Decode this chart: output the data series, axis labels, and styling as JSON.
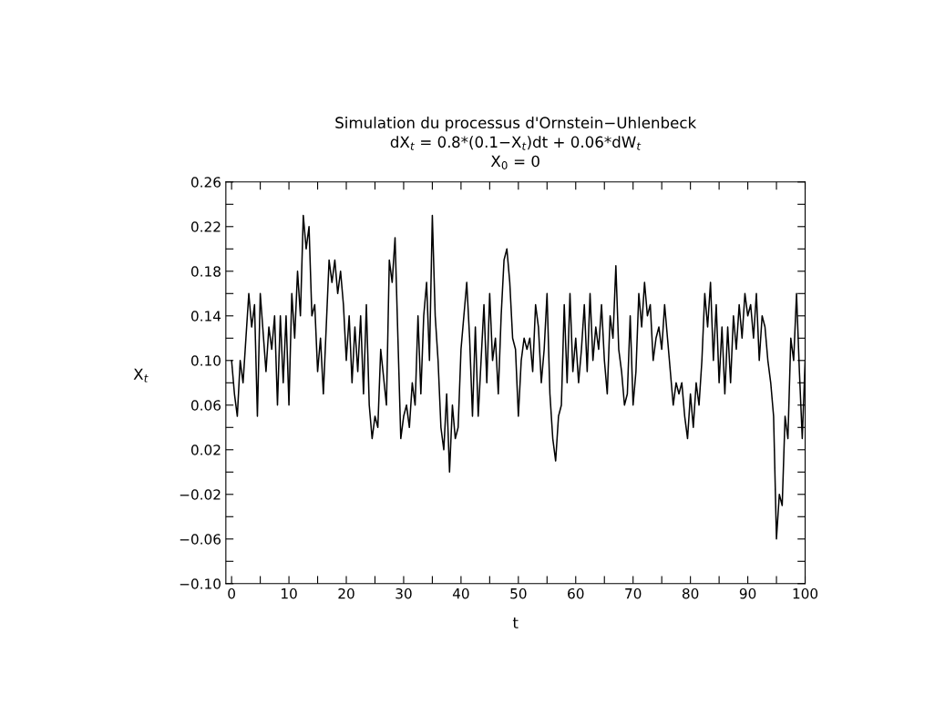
{
  "chart_data": {
    "type": "line",
    "title": "Simulation du processus d'Ornstein−Uhlenbeck\ndX$_{t}$ = 0.8*(0.1−X$_{t}$)dt + 0.06*dW$_{t}$\nX$_{0}$ = 0",
    "xlabel": "t",
    "ylabel": "X$_{t}$",
    "grid": false,
    "legend": false,
    "marker": "none",
    "line_style": "solid",
    "xlim": [
      -1,
      100
    ],
    "ylim": [
      -0.1,
      0.26
    ],
    "xticks": [
      0,
      {
        "value": 5,
        "label": null
      },
      10,
      {
        "value": 15,
        "label": null
      },
      20,
      {
        "value": 25,
        "label": null
      },
      30,
      {
        "value": 35,
        "label": null
      },
      40,
      {
        "value": 45,
        "label": null
      },
      50,
      {
        "value": 55,
        "label": null
      },
      60,
      {
        "value": 65,
        "label": null
      },
      70,
      {
        "value": 75,
        "label": null
      },
      80,
      {
        "value": 85,
        "label": null
      },
      90,
      {
        "value": 95,
        "label": null
      },
      100
    ],
    "yticks": [
      {
        "value": -0.1,
        "label": "−0.10"
      },
      {
        "value": -0.08,
        "label": null
      },
      {
        "value": -0.06,
        "label": "−0.06"
      },
      {
        "value": -0.04,
        "label": null
      },
      {
        "value": -0.02,
        "label": "−0.02"
      },
      {
        "value": 0,
        "label": null
      },
      {
        "value": 0.02,
        "label": "0.02"
      },
      {
        "value": 0.04,
        "label": null
      },
      {
        "value": 0.06,
        "label": "0.06"
      },
      {
        "value": 0.08,
        "label": null
      },
      {
        "value": 0.1,
        "label": "0.10"
      },
      {
        "value": 0.12,
        "label": null
      },
      {
        "value": 0.14,
        "label": "0.14"
      },
      {
        "value": 0.16,
        "label": null
      },
      {
        "value": 0.18,
        "label": "0.18"
      },
      {
        "value": 0.2,
        "label": null
      },
      {
        "value": 0.22,
        "label": "0.22"
      },
      {
        "value": 0.24,
        "label": null
      },
      {
        "value": 0.26,
        "label": "0.26"
      }
    ],
    "series": [
      {
        "color": "#000000",
        "x": [
          0,
          0.5,
          1,
          1.5,
          2,
          2.5,
          3,
          3.5,
          4,
          4.5,
          5,
          6,
          6.5,
          7,
          7.5,
          8,
          8.5,
          9,
          9.5,
          10,
          10.5,
          11,
          11.5,
          12,
          12.5,
          13,
          13.5,
          14,
          14.5,
          15,
          15.5,
          16,
          17,
          17.5,
          18,
          18.5,
          19,
          19.5,
          20,
          20.5,
          21,
          21.5,
          22,
          22.5,
          23,
          23.5,
          24,
          24.5,
          25,
          25.5,
          26,
          27,
          27.5,
          28,
          28.5,
          29,
          29.5,
          30,
          30.5,
          31,
          31.5,
          32,
          32.5,
          33,
          33.5,
          34,
          34.5,
          35,
          35.5,
          36,
          36.5,
          37,
          37.5,
          38,
          38.5,
          39,
          39.5,
          40,
          41,
          41.5,
          42,
          42.5,
          43,
          43.5,
          44,
          44.5,
          45,
          45.5,
          46,
          46.5,
          47,
          47.5,
          48,
          48.5,
          49,
          49.5,
          50,
          50.5,
          51,
          51.5,
          52,
          52.5,
          53,
          53.5,
          54,
          54.5,
          55,
          55.5,
          56,
          56.5,
          57,
          57.5,
          58,
          58.5,
          59,
          59.5,
          60,
          60.5,
          61,
          61.5,
          62,
          62.5,
          63,
          63.5,
          64,
          64.5,
          65,
          65.5,
          66,
          66.5,
          67,
          67.5,
          68,
          68.5,
          69,
          69.5,
          70,
          70.5,
          71,
          71.5,
          72,
          72.5,
          73,
          73.5,
          74,
          74.5,
          75,
          75.5,
          76,
          77,
          77.5,
          78,
          78.5,
          79,
          79.5,
          80,
          80.5,
          81,
          81.5,
          82,
          82.5,
          83,
          83.5,
          84,
          84.5,
          85,
          85.5,
          86,
          86.5,
          87,
          87.5,
          88,
          88.5,
          89,
          89.5,
          90,
          90.5,
          91,
          91.5,
          92,
          92.5,
          93,
          93.5,
          94,
          94.5,
          95,
          95.5,
          96,
          96.5,
          97,
          97.5,
          98,
          98.5,
          99,
          99.5,
          100
        ],
        "values": [
          0.1,
          0.07,
          0.05,
          0.1,
          0.08,
          0.12,
          0.16,
          0.13,
          0.15,
          0.05,
          0.16,
          0.09,
          0.13,
          0.11,
          0.14,
          0.06,
          0.14,
          0.08,
          0.14,
          0.06,
          0.16,
          0.12,
          0.18,
          0.14,
          0.23,
          0.2,
          0.22,
          0.14,
          0.15,
          0.09,
          0.12,
          0.07,
          0.19,
          0.17,
          0.19,
          0.16,
          0.18,
          0.15,
          0.1,
          0.14,
          0.08,
          0.13,
          0.09,
          0.14,
          0.07,
          0.15,
          0.06,
          0.03,
          0.05,
          0.04,
          0.11,
          0.06,
          0.19,
          0.17,
          0.21,
          0.12,
          0.03,
          0.05,
          0.06,
          0.04,
          0.08,
          0.06,
          0.14,
          0.07,
          0.14,
          0.17,
          0.1,
          0.23,
          0.14,
          0.1,
          0.04,
          0.02,
          0.07,
          0.0,
          0.06,
          0.03,
          0.04,
          0.11,
          0.17,
          0.12,
          0.05,
          0.13,
          0.05,
          0.1,
          0.15,
          0.08,
          0.16,
          0.1,
          0.12,
          0.07,
          0.14,
          0.19,
          0.2,
          0.17,
          0.12,
          0.11,
          0.05,
          0.1,
          0.12,
          0.11,
          0.12,
          0.09,
          0.15,
          0.13,
          0.08,
          0.11,
          0.16,
          0.07,
          0.03,
          0.01,
          0.05,
          0.06,
          0.15,
          0.08,
          0.16,
          0.09,
          0.12,
          0.08,
          0.11,
          0.15,
          0.09,
          0.16,
          0.1,
          0.13,
          0.11,
          0.15,
          0.1,
          0.07,
          0.14,
          0.12,
          0.185,
          0.11,
          0.09,
          0.06,
          0.07,
          0.14,
          0.06,
          0.09,
          0.16,
          0.13,
          0.17,
          0.14,
          0.15,
          0.1,
          0.12,
          0.13,
          0.11,
          0.15,
          0.12,
          0.06,
          0.08,
          0.07,
          0.08,
          0.05,
          0.03,
          0.07,
          0.04,
          0.08,
          0.06,
          0.1,
          0.16,
          0.13,
          0.17,
          0.1,
          0.15,
          0.08,
          0.13,
          0.07,
          0.13,
          0.08,
          0.14,
          0.11,
          0.15,
          0.12,
          0.16,
          0.14,
          0.15,
          0.12,
          0.16,
          0.1,
          0.14,
          0.13,
          0.1,
          0.08,
          0.05,
          -0.06,
          -0.02,
          -0.03,
          0.05,
          0.03,
          0.12,
          0.1,
          0.16,
          0.09,
          0.03,
          0.1
        ]
      }
    ]
  }
}
